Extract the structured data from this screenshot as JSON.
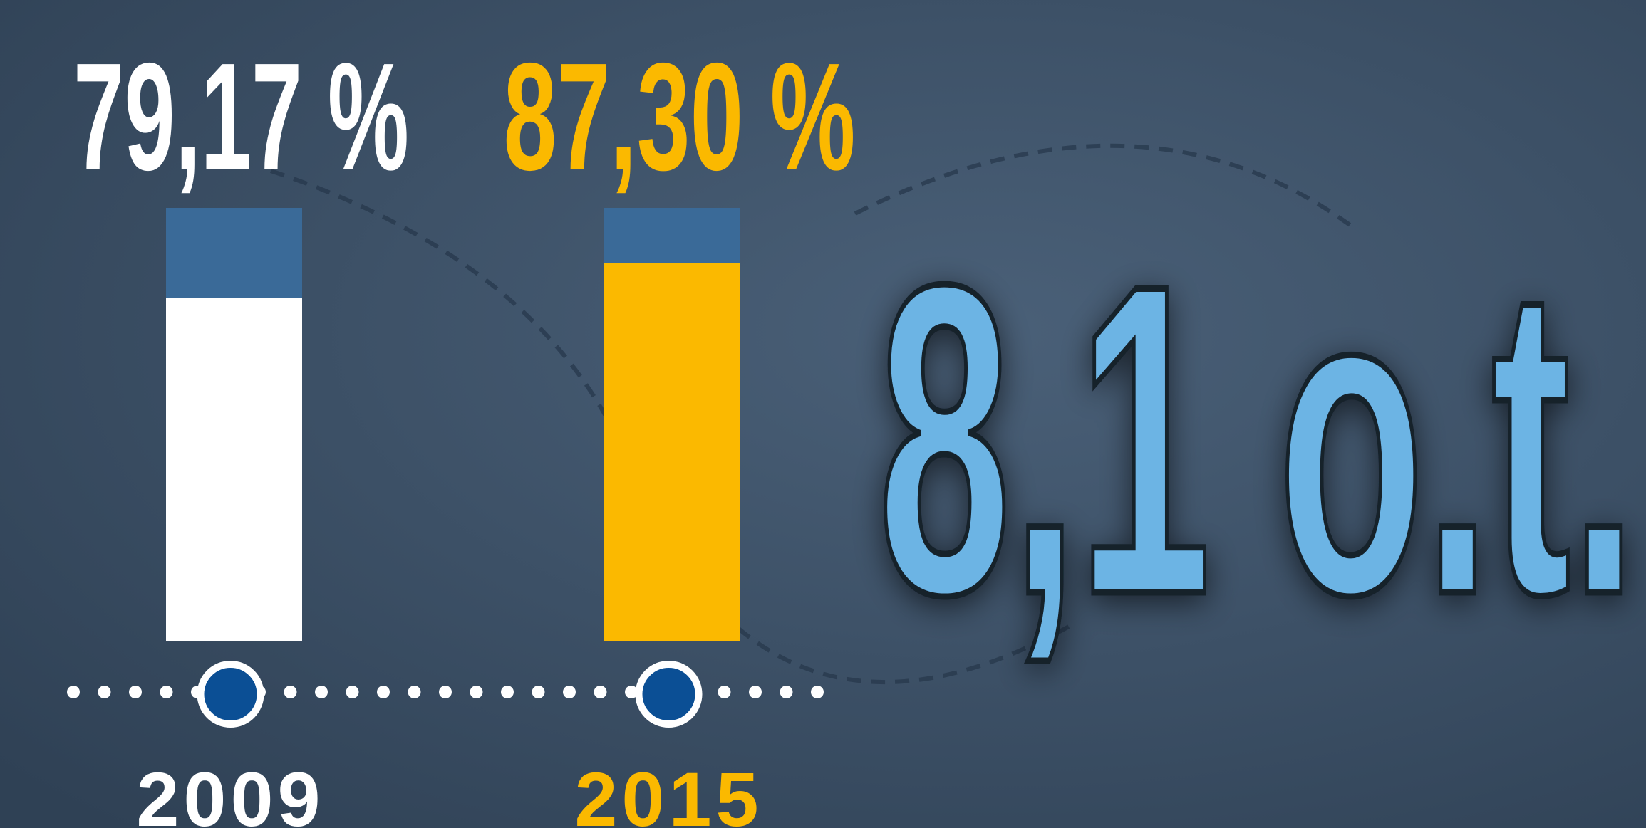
{
  "chart_data": {
    "type": "bar",
    "categories": [
      "2009",
      "2015"
    ],
    "values": [
      79.17,
      87.3
    ],
    "value_labels": [
      "79,17 %",
      "87,30 %"
    ],
    "colors": [
      "#ffffff",
      "#fbb900"
    ],
    "ylim": [
      0,
      100
    ],
    "annotation": "8,1 o.t."
  }
}
